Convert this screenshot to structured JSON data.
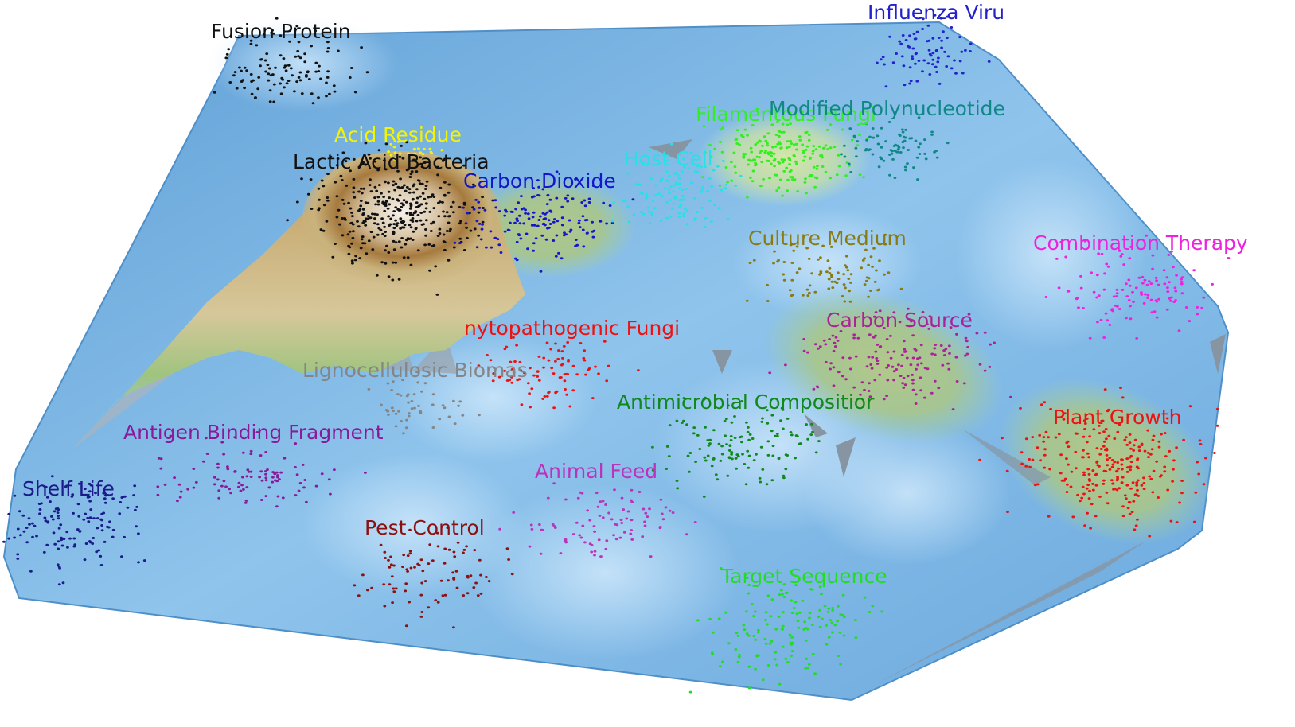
{
  "clusters": [
    {
      "id": "fusion-protein",
      "label": "Fusion Protein",
      "color": "#111111"
    },
    {
      "id": "influenza-viru",
      "label": "Influenza Viru",
      "color": "#2222cc"
    },
    {
      "id": "acid-residue",
      "label": "Acid Residue",
      "color": "#f4f400"
    },
    {
      "id": "lactic-acid-bacteria",
      "label": "Lactic Acid Bacteria",
      "color": "#111111"
    },
    {
      "id": "carbon-dioxide",
      "label": "Carbon Dioxide",
      "color": "#1515cc"
    },
    {
      "id": "host-cell",
      "label": "Host Cell",
      "color": "#27e0e8"
    },
    {
      "id": "filamentous-fungi",
      "label": "Filamentous Fungi",
      "color": "#33ee22"
    },
    {
      "id": "modified-polynucleotide",
      "label": "Modified Polynucleotide",
      "color": "#118888"
    },
    {
      "id": "culture-medium",
      "label": "Culture Medium",
      "color": "#8a7a12"
    },
    {
      "id": "combination-therapy",
      "label": "Combination Therapy",
      "color": "#ee22dd"
    },
    {
      "id": "phytopathogenic-fungi",
      "label": "nytopathogenic Fungi",
      "color": "#ee1111"
    },
    {
      "id": "carbon-source",
      "label": "Carbon Source",
      "color": "#aa2299"
    },
    {
      "id": "lignocellulosic-biomass",
      "label": "Lignocellulosic Biomas",
      "color": "#858585"
    },
    {
      "id": "antimicrobial-composition",
      "label": "Antimicrobial Compositior",
      "color": "#11881b"
    },
    {
      "id": "plant-growth",
      "label": "Plant Growth",
      "color": "#ee1111"
    },
    {
      "id": "antigen-binding-fragment",
      "label": "Antigen Binding Fragment",
      "color": "#8a1a9a"
    },
    {
      "id": "shelf-life",
      "label": "Shelf Life",
      "color": "#1a1a88"
    },
    {
      "id": "animal-feed",
      "label": "Animal Feed",
      "color": "#bb33bb"
    },
    {
      "id": "pest-control",
      "label": "Pest Control",
      "color": "#8a1111"
    },
    {
      "id": "target-sequence",
      "label": "Target Sequence",
      "color": "#22dd22"
    }
  ]
}
